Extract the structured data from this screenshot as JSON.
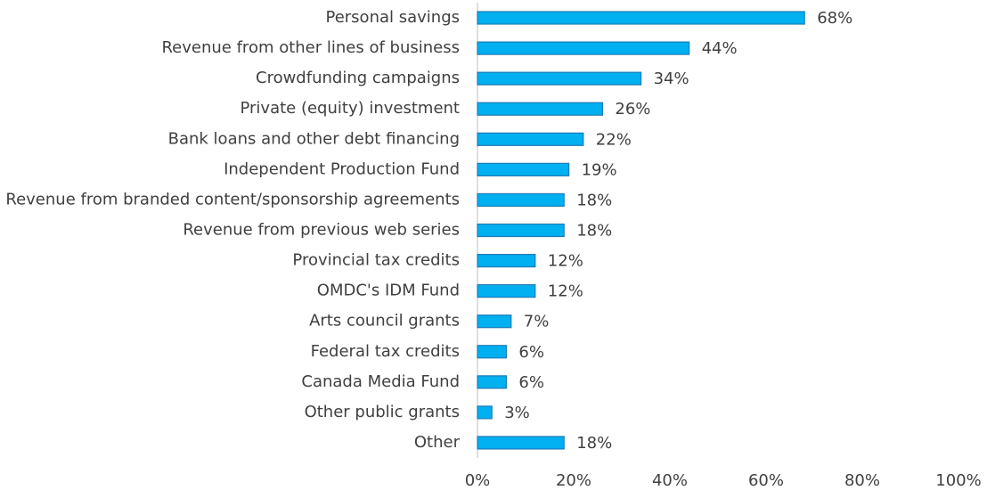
{
  "chart_data": {
    "type": "barh",
    "categories": [
      "Personal savings",
      "Revenue from other lines of business",
      "Crowdfunding campaigns",
      "Private (equity) investment",
      "Bank loans and other debt financing",
      "Independent Production Fund",
      "Revenue from branded content/sponsorship agreements",
      "Revenue from previous web series",
      "Provincial tax credits",
      "OMDC's IDM Fund",
      "Arts council grants",
      "Federal tax credits",
      "Canada Media Fund",
      "Other public grants",
      "Other"
    ],
    "values": [
      68,
      44,
      34,
      26,
      22,
      19,
      18,
      18,
      12,
      12,
      7,
      6,
      6,
      3,
      18
    ],
    "value_labels": [
      "68%",
      "44%",
      "34%",
      "26%",
      "22%",
      "19%",
      "18%",
      "18%",
      "12%",
      "12%",
      "7%",
      "6%",
      "6%",
      "3%",
      "18%"
    ],
    "color": "#00b0f0",
    "xlim": [
      0,
      100
    ],
    "xticks": [
      {
        "value": 0,
        "label": "0%"
      },
      {
        "value": 20,
        "label": "20%"
      },
      {
        "value": 40,
        "label": "40%"
      },
      {
        "value": 60,
        "label": "60%"
      },
      {
        "value": 80,
        "label": "80%"
      },
      {
        "value": 100,
        "label": "100%"
      }
    ],
    "grid": false
  }
}
